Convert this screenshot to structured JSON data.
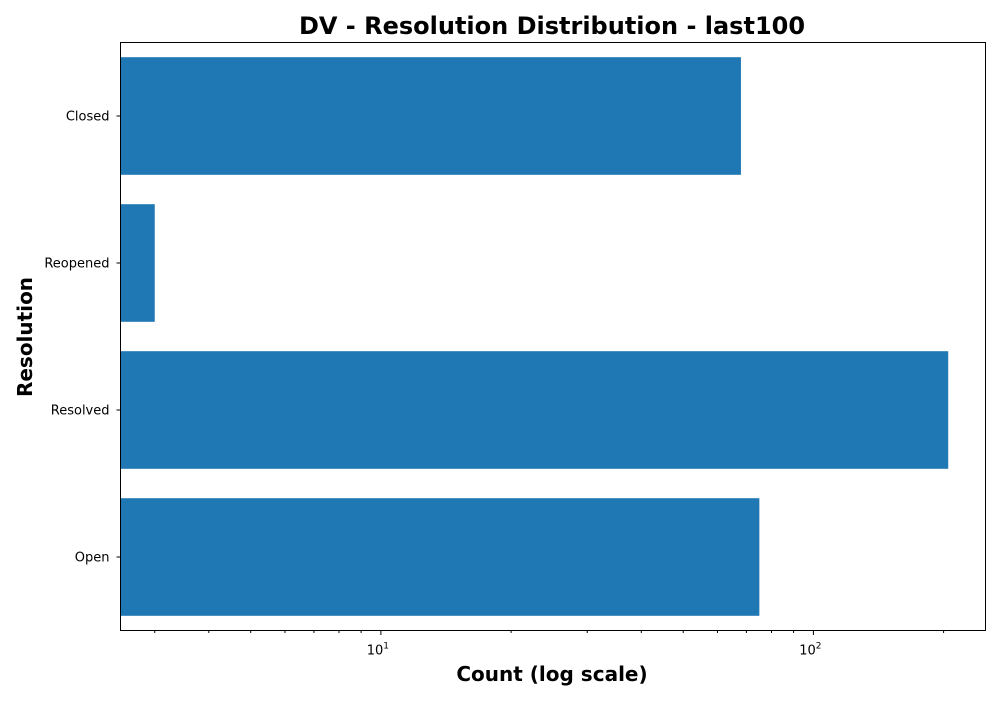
{
  "chart_data": {
    "type": "bar",
    "orientation": "horizontal",
    "title": "DV - Resolution Distribution - last100",
    "xlabel": "Count (log scale)",
    "ylabel": "Resolution",
    "x_scale": "log",
    "xlim": [
      2.5,
      250
    ],
    "x_ticks": [
      {
        "base": "10",
        "exp": "1",
        "value": 10
      },
      {
        "base": "10",
        "exp": "2",
        "value": 100
      }
    ],
    "categories": [
      "Closed",
      "Reopened",
      "Resolved",
      "Open"
    ],
    "values": [
      68,
      3,
      205,
      75
    ],
    "bar_color": "#1f77b4",
    "grid": false,
    "legend": "none"
  }
}
